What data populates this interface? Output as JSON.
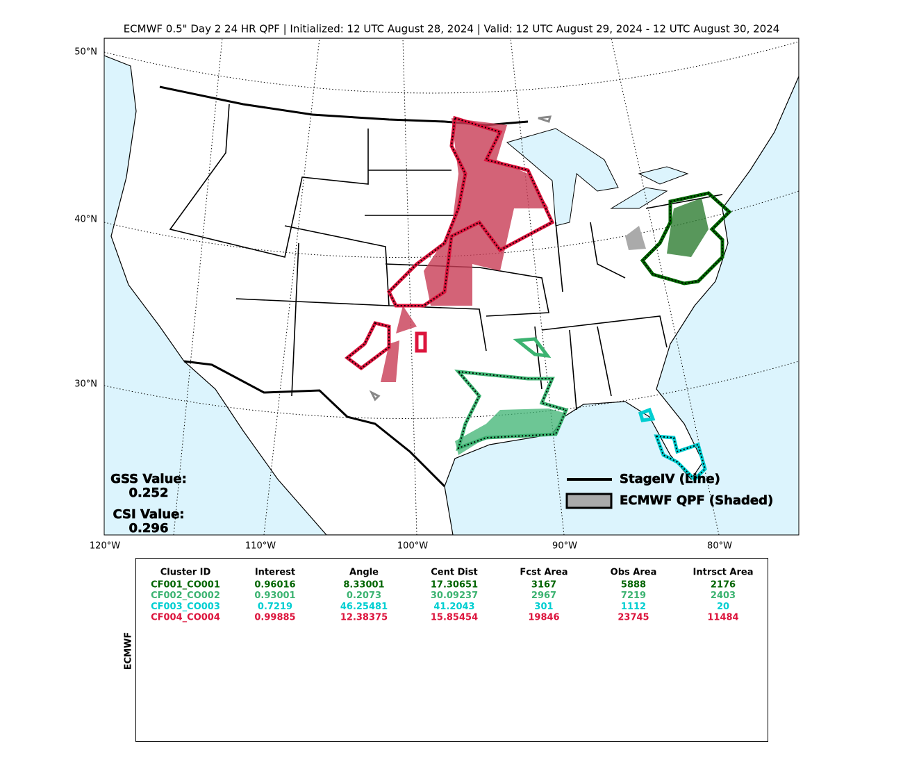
{
  "title": "ECMWF 0.5\" Day 2 24 HR QPF | Initialized: 12 UTC August 28, 2024 | Valid: 12 UTC August 29, 2024 - 12 UTC August 30, 2024",
  "map": {
    "lat_labels": [
      "50°N",
      "40°N",
      "30°N"
    ],
    "lon_labels": [
      "120°W",
      "110°W",
      "100°W",
      "90°W",
      "80°W"
    ],
    "gss": {
      "label": "GSS Value:",
      "value": 0.252
    },
    "csi": {
      "label": "CSI Value:",
      "value": 0.296
    },
    "legend": [
      "StageIV (Line)",
      "ECMWF QPF (Shaded)"
    ]
  },
  "table": {
    "side_label": "ECMWF",
    "columns": [
      "Cluster ID",
      "Interest",
      "Angle",
      "Cent Dist",
      "Fcst Area",
      "Obs Area",
      "Intrsct Area"
    ],
    "rows": [
      {
        "color": "#006400",
        "cells": [
          "CF001_CO001",
          0.96016,
          8.33001,
          17.30651,
          3167,
          5888,
          2176
        ]
      },
      {
        "color": "#3cb371",
        "cells": [
          "CF002_CO002",
          0.93001,
          0.2073,
          30.09237,
          2967,
          7219,
          2403
        ]
      },
      {
        "color": "#00ced1",
        "cells": [
          "CF003_CO003",
          0.7219,
          46.25481,
          41.2043,
          301,
          1112,
          20
        ]
      },
      {
        "color": "#dc143c",
        "cells": [
          "CF004_CO004",
          0.99885,
          12.38375,
          15.85454,
          19846,
          23745,
          11484
        ]
      }
    ]
  }
}
